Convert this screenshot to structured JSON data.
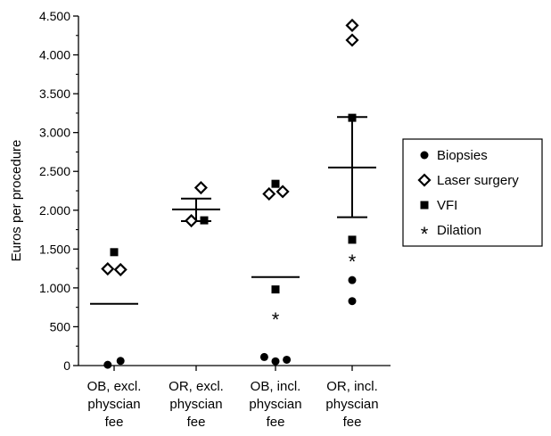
{
  "chart_data": {
    "type": "scatter",
    "ylabel": "Euros per procedure",
    "ylim": [
      0,
      4500
    ],
    "yticks": [
      0,
      500,
      1000,
      1500,
      2000,
      2500,
      3000,
      3500,
      4000,
      4500
    ],
    "ytick_labels": [
      "0",
      "500",
      "1.000",
      "1.500",
      "2.000",
      "2.500",
      "3.000",
      "3.500",
      "4.000",
      "4.500"
    ],
    "categories": [
      [
        "OB, excl.",
        "physcian",
        "fee"
      ],
      [
        "OR, excl.",
        "physcian",
        "fee"
      ],
      [
        "OB, incl.",
        "physcian",
        "fee"
      ],
      [
        "OR, incl.",
        "physcian",
        "fee"
      ]
    ],
    "legend_position": "right",
    "series": [
      {
        "name": "Biopsies",
        "marker": "circle",
        "points": [
          {
            "cat": 0,
            "dx": -0.08,
            "y": 10
          },
          {
            "cat": 0,
            "dx": 0.08,
            "y": 60
          },
          {
            "cat": 2,
            "dx": -0.14,
            "y": 110
          },
          {
            "cat": 2,
            "dx": 0.0,
            "y": 55
          },
          {
            "cat": 2,
            "dx": 0.14,
            "y": 75
          },
          {
            "cat": 3,
            "dx": 0.0,
            "y": 1100
          },
          {
            "cat": 3,
            "dx": 0.0,
            "y": 830
          }
        ]
      },
      {
        "name": "Laser surgery",
        "marker": "diamond",
        "points": [
          {
            "cat": 0,
            "dx": -0.08,
            "y": 1245
          },
          {
            "cat": 0,
            "dx": 0.08,
            "y": 1235
          },
          {
            "cat": 1,
            "dx": 0.06,
            "y": 2290
          },
          {
            "cat": 1,
            "dx": -0.06,
            "y": 1865
          },
          {
            "cat": 2,
            "dx": -0.08,
            "y": 2210
          },
          {
            "cat": 2,
            "dx": 0.09,
            "y": 2240
          },
          {
            "cat": 3,
            "dx": 0.0,
            "y": 4380
          },
          {
            "cat": 3,
            "dx": 0.0,
            "y": 4190
          }
        ]
      },
      {
        "name": "VFI",
        "marker": "square",
        "points": [
          {
            "cat": 0,
            "dx": 0.0,
            "y": 1460
          },
          {
            "cat": 1,
            "dx": 0.1,
            "y": 1870
          },
          {
            "cat": 2,
            "dx": 0.0,
            "y": 2340
          },
          {
            "cat": 2,
            "dx": 0.0,
            "y": 980
          },
          {
            "cat": 3,
            "dx": 0.0,
            "y": 3190
          },
          {
            "cat": 3,
            "dx": 0.0,
            "y": 1620
          }
        ]
      },
      {
        "name": "Dilation",
        "marker": "star",
        "points": [
          {
            "cat": 2,
            "dx": 0.0,
            "y": 640
          },
          {
            "cat": 3,
            "dx": 0.0,
            "y": 1390
          }
        ]
      }
    ],
    "means": [
      {
        "cat": 0,
        "mean": 795
      },
      {
        "cat": 1,
        "mean": 2010,
        "upper": 2150,
        "lower": 1860
      },
      {
        "cat": 2,
        "mean": 1140
      },
      {
        "cat": 3,
        "mean": 2550,
        "upper": 3200,
        "lower": 1910
      }
    ]
  }
}
